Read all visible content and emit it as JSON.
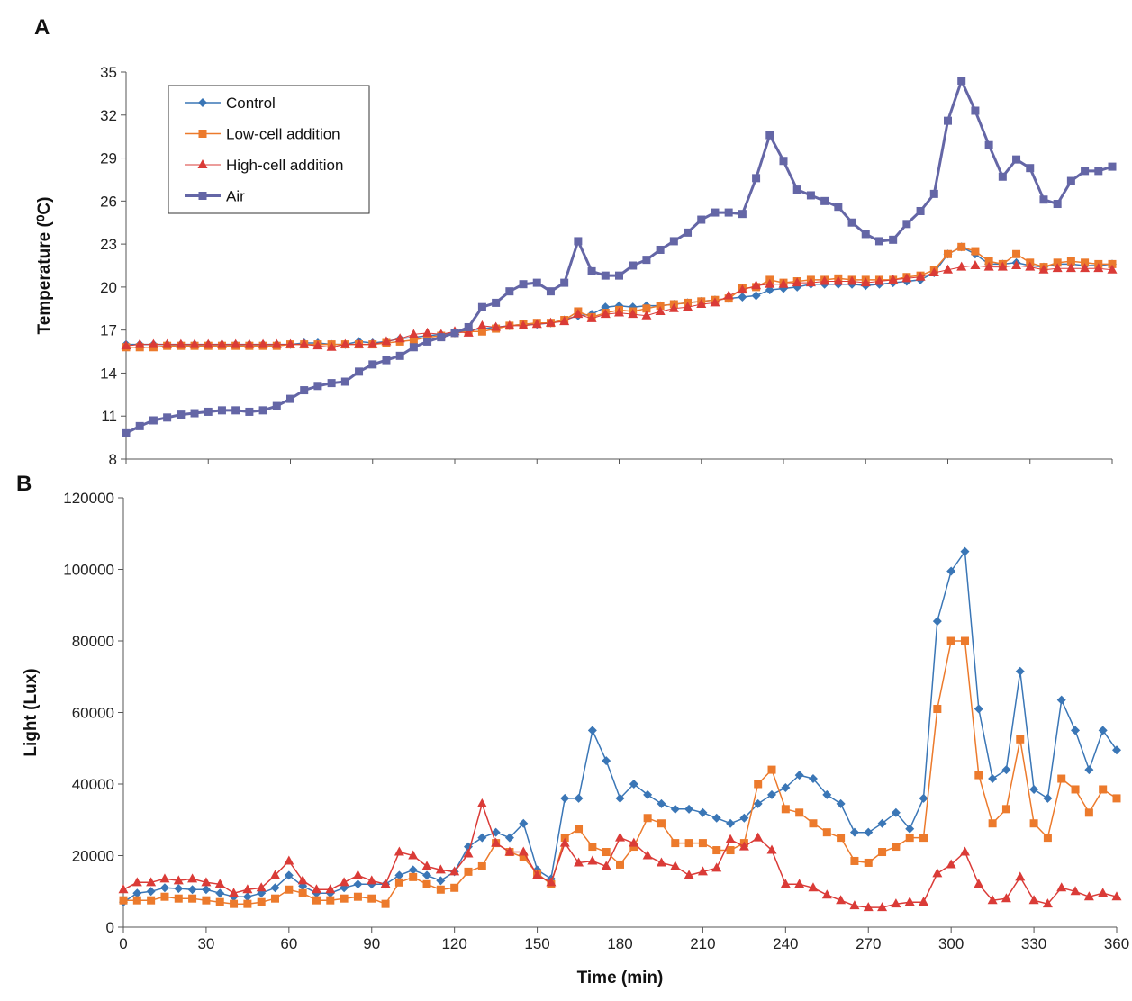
{
  "chart_data": [
    {
      "type": "line",
      "panel_label": "A",
      "y_label": "Temperature (⁰C)",
      "x": [
        0,
        5,
        10,
        15,
        20,
        25,
        30,
        35,
        40,
        45,
        50,
        55,
        60,
        65,
        70,
        75,
        80,
        85,
        90,
        95,
        100,
        105,
        110,
        115,
        120,
        125,
        130,
        135,
        140,
        145,
        150,
        155,
        160,
        165,
        170,
        175,
        180,
        185,
        190,
        195,
        200,
        205,
        210,
        215,
        220,
        225,
        230,
        235,
        240,
        245,
        250,
        255,
        260,
        265,
        270,
        275,
        280,
        285,
        290,
        295,
        300,
        305,
        310,
        315,
        320,
        325,
        330,
        335,
        340,
        345,
        350,
        355,
        360
      ],
      "xlim": [
        0,
        360
      ],
      "xticks": [
        0,
        30,
        60,
        90,
        120,
        150,
        180,
        210,
        240,
        270,
        300,
        330,
        360
      ],
      "ylim": [
        8,
        35
      ],
      "yticks": [
        8,
        11,
        14,
        17,
        20,
        23,
        26,
        29,
        32,
        35
      ],
      "legend": "top-left",
      "series": [
        {
          "name": "Control",
          "color": "#3a76b6",
          "marker": "diamond",
          "width": 1.5,
          "values": [
            16.0,
            16.0,
            16.0,
            16.0,
            16.0,
            16.0,
            16.0,
            16.0,
            16.0,
            16.0,
            16.0,
            16.0,
            16.0,
            16.1,
            16.1,
            16.0,
            16.0,
            16.2,
            16.1,
            16.2,
            16.4,
            16.5,
            16.6,
            16.7,
            16.8,
            17.0,
            17.1,
            17.2,
            17.3,
            17.4,
            17.4,
            17.5,
            17.7,
            18.0,
            18.1,
            18.6,
            18.7,
            18.6,
            18.7,
            18.7,
            18.8,
            18.9,
            19.0,
            19.1,
            19.2,
            19.3,
            19.4,
            19.8,
            19.9,
            20.0,
            20.2,
            20.2,
            20.2,
            20.2,
            20.1,
            20.2,
            20.3,
            20.4,
            20.5,
            21.0,
            22.3,
            22.8,
            22.3,
            21.6,
            21.6,
            21.7,
            21.5,
            21.4,
            21.6,
            21.6,
            21.5,
            21.5,
            21.6
          ]
        },
        {
          "name": "Low-cell addition",
          "color": "#ec7a2c",
          "marker": "square",
          "width": 1.5,
          "values": [
            15.8,
            15.8,
            15.8,
            15.9,
            15.9,
            15.9,
            15.9,
            15.9,
            15.9,
            15.9,
            15.9,
            15.9,
            16.0,
            16.0,
            16.0,
            16.0,
            16.0,
            16.0,
            16.0,
            16.1,
            16.2,
            16.3,
            16.5,
            16.6,
            16.8,
            16.9,
            16.9,
            17.1,
            17.3,
            17.4,
            17.5,
            17.5,
            17.7,
            18.3,
            17.9,
            18.2,
            18.4,
            18.3,
            18.5,
            18.7,
            18.8,
            18.9,
            19.0,
            19.1,
            19.2,
            19.9,
            20.0,
            20.5,
            20.3,
            20.4,
            20.5,
            20.5,
            20.6,
            20.5,
            20.5,
            20.5,
            20.5,
            20.7,
            20.8,
            21.2,
            22.3,
            22.8,
            22.5,
            21.8,
            21.6,
            22.3,
            21.7,
            21.4,
            21.7,
            21.8,
            21.7,
            21.6,
            21.6
          ]
        },
        {
          "name": "High-cell addition",
          "color": "#da3b37",
          "marker": "triangle",
          "width": 1,
          "values": [
            15.9,
            16.0,
            16.0,
            16.0,
            16.0,
            16.0,
            16.0,
            16.0,
            16.0,
            16.0,
            16.0,
            16.0,
            16.0,
            16.0,
            15.9,
            15.8,
            16.0,
            16.0,
            16.0,
            16.2,
            16.4,
            16.7,
            16.8,
            16.7,
            16.9,
            16.8,
            17.3,
            17.2,
            17.3,
            17.3,
            17.4,
            17.5,
            17.6,
            18.1,
            17.8,
            18.1,
            18.2,
            18.1,
            18.0,
            18.3,
            18.5,
            18.6,
            18.8,
            18.9,
            19.4,
            19.8,
            20.1,
            20.2,
            20.2,
            20.3,
            20.3,
            20.4,
            20.4,
            20.4,
            20.3,
            20.4,
            20.5,
            20.6,
            20.7,
            21.0,
            21.2,
            21.4,
            21.5,
            21.4,
            21.4,
            21.5,
            21.4,
            21.2,
            21.3,
            21.3,
            21.3,
            21.3,
            21.2
          ]
        },
        {
          "name": "Air",
          "color": "#6466a6",
          "marker": "square",
          "width": 3,
          "values": [
            9.8,
            10.3,
            10.7,
            10.9,
            11.1,
            11.2,
            11.3,
            11.4,
            11.4,
            11.3,
            11.4,
            11.7,
            12.2,
            12.8,
            13.1,
            13.3,
            13.4,
            14.1,
            14.6,
            14.9,
            15.2,
            15.8,
            16.2,
            16.5,
            16.8,
            17.2,
            18.6,
            18.9,
            19.7,
            20.2,
            20.3,
            19.7,
            20.3,
            23.2,
            21.1,
            20.8,
            20.8,
            21.5,
            21.9,
            22.6,
            23.2,
            23.8,
            24.7,
            25.2,
            25.2,
            25.1,
            27.6,
            30.6,
            28.8,
            26.8,
            26.4,
            26.0,
            25.6,
            24.5,
            23.7,
            23.2,
            23.3,
            24.4,
            25.3,
            26.5,
            31.6,
            34.4,
            32.3,
            29.9,
            27.7,
            28.9,
            28.3,
            26.1,
            25.8,
            27.4,
            28.1,
            28.1,
            28.4
          ]
        }
      ]
    },
    {
      "type": "line",
      "panel_label": "B",
      "y_label": "Light (Lux)",
      "x_label": "Time (min)",
      "x": [
        0,
        5,
        10,
        15,
        20,
        25,
        30,
        35,
        40,
        45,
        50,
        55,
        60,
        65,
        70,
        75,
        80,
        85,
        90,
        95,
        100,
        105,
        110,
        115,
        120,
        125,
        130,
        135,
        140,
        145,
        150,
        155,
        160,
        165,
        170,
        175,
        180,
        185,
        190,
        195,
        200,
        205,
        210,
        215,
        220,
        225,
        230,
        235,
        240,
        245,
        250,
        255,
        260,
        265,
        270,
        275,
        280,
        285,
        290,
        295,
        300,
        305,
        310,
        315,
        320,
        325,
        330,
        335,
        340,
        345,
        350,
        355,
        360
      ],
      "xlim": [
        0,
        360
      ],
      "xticks": [
        0,
        30,
        60,
        90,
        120,
        150,
        180,
        210,
        240,
        270,
        300,
        330,
        360
      ],
      "ylim": [
        0,
        120000
      ],
      "yticks": [
        0,
        20000,
        40000,
        60000,
        80000,
        100000,
        120000
      ],
      "series": [
        {
          "color": "#3a76b6",
          "marker": "diamond",
          "width": 1.5,
          "values": [
            7000,
            9500,
            10000,
            11000,
            10800,
            10500,
            10500,
            9500,
            8500,
            8500,
            9500,
            11000,
            14500,
            11500,
            9500,
            9500,
            11000,
            12000,
            12000,
            12000,
            14500,
            16000,
            14500,
            13000,
            15500,
            22500,
            25000,
            26500,
            25000,
            29000,
            16000,
            13500,
            36000,
            36000,
            55000,
            46500,
            36000,
            40000,
            37000,
            34500,
            33000,
            33000,
            32000,
            30500,
            29000,
            30500,
            34500,
            37000,
            39000,
            42500,
            41500,
            37000,
            34500,
            26500,
            26500,
            29000,
            32000,
            27500,
            36000,
            85500,
            99500,
            105000,
            61000,
            41500,
            44000,
            71500,
            38500,
            36000,
            63500,
            55000,
            44000,
            55000,
            49500
          ]
        },
        {
          "color": "#ec7a2c",
          "marker": "square",
          "width": 1.5,
          "values": [
            7500,
            7500,
            7500,
            8500,
            8000,
            8000,
            7500,
            7000,
            6500,
            6500,
            7000,
            8000,
            10500,
            9500,
            7500,
            7500,
            8000,
            8500,
            8000,
            6500,
            12500,
            14000,
            12000,
            10500,
            11000,
            15500,
            17000,
            23500,
            21000,
            19500,
            15000,
            12000,
            25000,
            27500,
            22500,
            21000,
            17500,
            22500,
            30500,
            29000,
            23500,
            23500,
            23500,
            21500,
            21500,
            23500,
            40000,
            44000,
            33000,
            32000,
            29000,
            26500,
            25000,
            18500,
            18000,
            21000,
            22500,
            25000,
            25000,
            61000,
            80000,
            80000,
            42500,
            29000,
            33000,
            52500,
            29000,
            25000,
            41500,
            38500,
            32000,
            38500,
            36000
          ]
        },
        {
          "color": "#da3b37",
          "marker": "triangle",
          "width": 1.5,
          "values": [
            10500,
            12500,
            12500,
            13500,
            13000,
            13500,
            12500,
            12000,
            9500,
            10500,
            11000,
            14500,
            18500,
            13000,
            10500,
            10500,
            12500,
            14500,
            13000,
            12000,
            21000,
            20000,
            17000,
            16000,
            15500,
            20500,
            34500,
            23500,
            21000,
            21000,
            14500,
            12500,
            23500,
            18000,
            18500,
            17000,
            25000,
            23500,
            20000,
            18000,
            17000,
            14500,
            15500,
            16500,
            24500,
            22500,
            25000,
            21500,
            12000,
            12000,
            11000,
            9000,
            7500,
            6000,
            5500,
            5500,
            6500,
            7000,
            7000,
            15000,
            17500,
            21000,
            12000,
            7500,
            8000,
            14000,
            7500,
            6500,
            11000,
            10000,
            8500,
            9500,
            8500
          ]
        }
      ]
    }
  ]
}
